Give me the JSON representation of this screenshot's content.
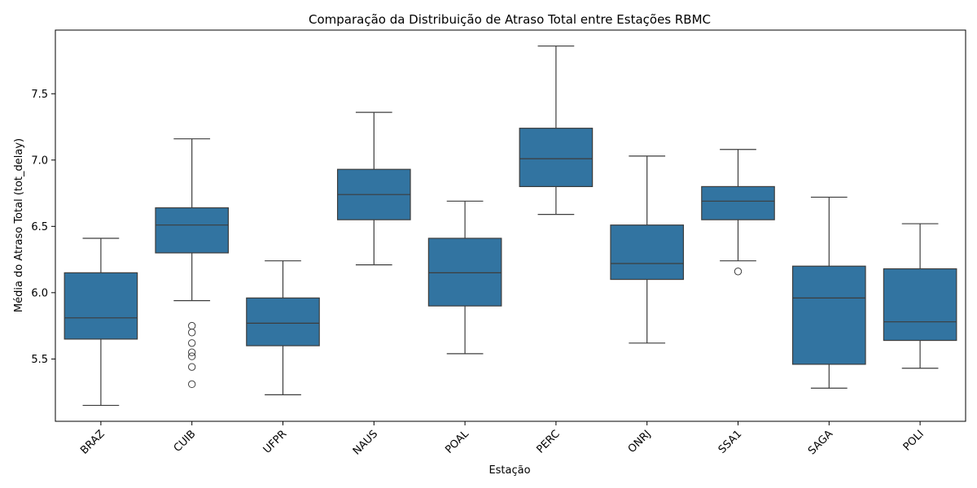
{
  "chart_data": {
    "type": "box",
    "title": "Comparação da Distribuição de Atraso Total entre Estações RBMC",
    "xlabel": "Estação",
    "ylabel": "Média do Atraso Total (tot_delay)",
    "ylim": [
      5.03,
      7.98
    ],
    "yticks": [
      "5.5",
      "6.0",
      "6.5",
      "7.0",
      "7.5"
    ],
    "grid": false,
    "box_color": "#3274a1",
    "line_color": "#3d3d3d",
    "categories": [
      "BRAZ",
      "CUIB",
      "UFPR",
      "NAUS",
      "POAL",
      "PERC",
      "ONRJ",
      "SSA1",
      "SAGA",
      "POLI"
    ],
    "boxes": [
      {
        "label": "BRAZ",
        "whisker_low": 5.15,
        "q1": 5.65,
        "median": 5.81,
        "q3": 6.15,
        "whisker_high": 6.41,
        "outliers": []
      },
      {
        "label": "CUIB",
        "whisker_low": 5.94,
        "q1": 6.3,
        "median": 6.51,
        "q3": 6.64,
        "whisker_high": 7.16,
        "outliers": [
          5.75,
          5.7,
          5.62,
          5.55,
          5.52,
          5.44,
          5.31
        ]
      },
      {
        "label": "UFPR",
        "whisker_low": 5.23,
        "q1": 5.6,
        "median": 5.77,
        "q3": 5.96,
        "whisker_high": 6.24,
        "outliers": []
      },
      {
        "label": "NAUS",
        "whisker_low": 6.21,
        "q1": 6.55,
        "median": 6.74,
        "q3": 6.93,
        "whisker_high": 7.36,
        "outliers": []
      },
      {
        "label": "POAL",
        "whisker_low": 5.54,
        "q1": 5.9,
        "median": 6.15,
        "q3": 6.41,
        "whisker_high": 6.69,
        "outliers": []
      },
      {
        "label": "PERC",
        "whisker_low": 6.59,
        "q1": 6.8,
        "median": 7.01,
        "q3": 7.24,
        "whisker_high": 7.86,
        "outliers": []
      },
      {
        "label": "ONRJ",
        "whisker_low": 5.62,
        "q1": 6.1,
        "median": 6.22,
        "q3": 6.51,
        "whisker_high": 7.03,
        "outliers": []
      },
      {
        "label": "SSA1",
        "whisker_low": 6.24,
        "q1": 6.55,
        "median": 6.69,
        "q3": 6.8,
        "whisker_high": 7.08,
        "outliers": [
          6.16
        ]
      },
      {
        "label": "SAGA",
        "whisker_low": 5.28,
        "q1": 5.46,
        "median": 5.96,
        "q3": 6.2,
        "whisker_high": 6.72,
        "outliers": []
      },
      {
        "label": "POLI",
        "whisker_low": 5.43,
        "q1": 5.64,
        "median": 5.78,
        "q3": 6.18,
        "whisker_high": 6.52,
        "outliers": []
      }
    ]
  }
}
